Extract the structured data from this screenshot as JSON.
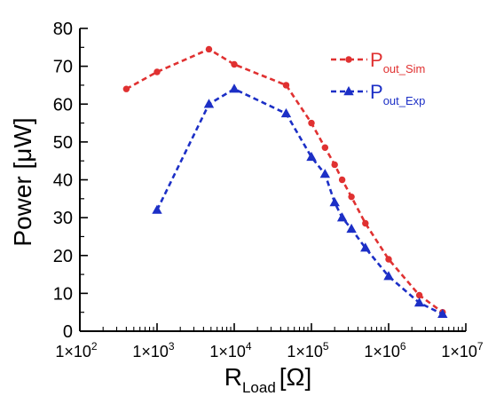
{
  "chart_data": {
    "type": "line",
    "x_scale": "log",
    "title": "",
    "xlabel": {
      "main": "R",
      "sub": "Load",
      "unit": "[Ω]"
    },
    "ylabel": {
      "prefix": "Power [",
      "unit": "μW",
      "suffix": "]"
    },
    "xlim": [
      100,
      10000000
    ],
    "ylim": [
      0,
      80
    ],
    "y_ticks": [
      0,
      10,
      20,
      30,
      40,
      50,
      60,
      70,
      80
    ],
    "x_ticks": [
      {
        "value": 100,
        "mantissa": "1×10",
        "exp": "2"
      },
      {
        "value": 1000,
        "mantissa": "1×10",
        "exp": "3"
      },
      {
        "value": 10000,
        "mantissa": "1×10",
        "exp": "4"
      },
      {
        "value": 100000,
        "mantissa": "1×10",
        "exp": "5"
      },
      {
        "value": 1000000,
        "mantissa": "1×10",
        "exp": "6"
      },
      {
        "value": 10000000,
        "mantissa": "1×10",
        "exp": "7"
      }
    ],
    "grid": false,
    "legend_position": "top-right",
    "series": [
      {
        "name": "P",
        "name_sub": "out_Sim",
        "color": "#e03131",
        "marker": "circle",
        "x": [
          400,
          1000,
          4700,
          10000,
          47000,
          100000,
          150000,
          200000,
          250000,
          330000,
          500000,
          1000000,
          2500000,
          5000000
        ],
        "y": [
          64,
          68.5,
          74.5,
          70.5,
          65,
          55,
          48.5,
          44,
          40,
          35.5,
          28.5,
          19,
          9.5,
          5
        ]
      },
      {
        "name": "P",
        "name_sub": "out_Exp",
        "color": "#1c2fc6",
        "marker": "triangle",
        "x": [
          1000,
          4700,
          10000,
          47000,
          100000,
          150000,
          200000,
          250000,
          330000,
          500000,
          1000000,
          2500000,
          5000000
        ],
        "y": [
          32,
          60,
          64,
          57.5,
          46,
          41.5,
          34,
          30,
          27,
          22,
          14.5,
          7.5,
          4.5
        ]
      }
    ]
  }
}
